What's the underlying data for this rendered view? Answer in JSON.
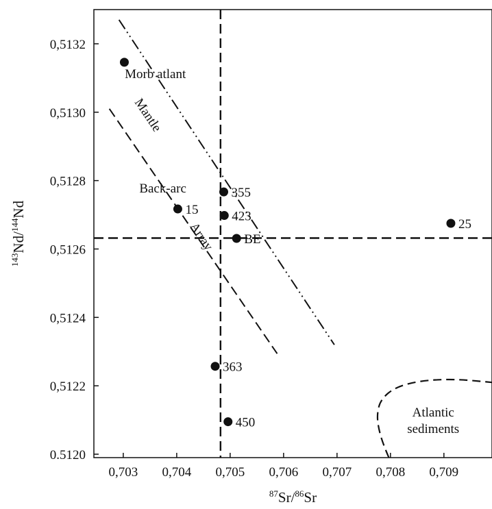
{
  "chart_data": {
    "type": "scatter",
    "xlabel": {
      "sup1": "87",
      "base1": "Sr/",
      "sup2": "86",
      "base2": "Sr"
    },
    "ylabel": {
      "sup1": "143",
      "base1": "Nd/",
      "sup2": "144",
      "base2": "Nd"
    },
    "xlim": [
      0.70245,
      0.7099
    ],
    "ylim": [
      0.51199,
      0.5133
    ],
    "x_ticks": [
      {
        "value": 0.703,
        "label": "0,703"
      },
      {
        "value": 0.704,
        "label": "0,704"
      },
      {
        "value": 0.705,
        "label": "0,705"
      },
      {
        "value": 0.706,
        "label": "0,706"
      },
      {
        "value": 0.707,
        "label": "0,707"
      },
      {
        "value": 0.708,
        "label": "0,708"
      },
      {
        "value": 0.709,
        "label": "0,709"
      }
    ],
    "y_ticks": [
      {
        "value": 0.512,
        "label": "0.5120"
      },
      {
        "value": 0.5122,
        "label": "0,5122"
      },
      {
        "value": 0.5124,
        "label": "0,5124"
      },
      {
        "value": 0.5126,
        "label": "0,5126"
      },
      {
        "value": 0.5128,
        "label": "0,5128"
      },
      {
        "value": 0.513,
        "label": "0,5130"
      },
      {
        "value": 0.5132,
        "label": "0,5132"
      }
    ],
    "points": [
      {
        "x": 0.70302,
        "y": 0.513146,
        "label": "",
        "id": "morb"
      },
      {
        "x": 0.70402,
        "y": 0.512717,
        "label": "15"
      },
      {
        "x": 0.70488,
        "y": 0.512767,
        "label": "355"
      },
      {
        "x": 0.70489,
        "y": 0.512698,
        "label": "423"
      },
      {
        "x": 0.70512,
        "y": 0.512631,
        "label": "BE"
      },
      {
        "x": 0.70913,
        "y": 0.512675,
        "label": "25"
      },
      {
        "x": 0.70472,
        "y": 0.512257,
        "label": "363"
      },
      {
        "x": 0.70496,
        "y": 0.512095,
        "label": "450"
      }
    ],
    "reference_lines": [
      {
        "orientation": "vertical",
        "x": 0.70482,
        "style": "dashed"
      },
      {
        "orientation": "horizontal",
        "y": 0.512632,
        "style": "dashed"
      }
    ],
    "trend_lines": [
      {
        "name": "Mantle Array",
        "style": "dashed",
        "from": [
          0.70274,
          0.51301
        ],
        "to": [
          0.70588,
          0.512294
        ]
      },
      {
        "name": "Morb atlant trend",
        "style": "dash-dot-dot",
        "from": [
          0.70292,
          0.51327
        ],
        "to": [
          0.70695,
          0.51232
        ]
      }
    ],
    "fields": [
      {
        "name": "Atlantic sediments",
        "style": "dashed",
        "outline": [
          [
            0.70797,
            0.51199
          ],
          [
            0.70786,
            0.51203
          ],
          [
            0.70777,
            0.51208
          ],
          [
            0.70775,
            0.51212
          ],
          [
            0.70782,
            0.51216
          ],
          [
            0.70808,
            0.512195
          ],
          [
            0.70855,
            0.512215
          ],
          [
            0.7092,
            0.51222
          ],
          [
            0.7099,
            0.51221
          ]
        ]
      }
    ],
    "annotations": [
      {
        "text": "Morb atlant",
        "x": 0.7036,
        "y": 0.5131,
        "rotation": 0
      },
      {
        "text": "Back-arc",
        "x": 0.70374,
        "y": 0.512765,
        "rotation": 0
      },
      {
        "text": "Mantle",
        "x": 0.7034,
        "y": 0.512985,
        "rotation": 56
      },
      {
        "text": "Array",
        "x": 0.7044,
        "y": 0.51263,
        "rotation": 56
      },
      {
        "line1": "Atlantic",
        "line2": "sediments",
        "x": 0.7088,
        "y": 0.51211
      }
    ]
  }
}
